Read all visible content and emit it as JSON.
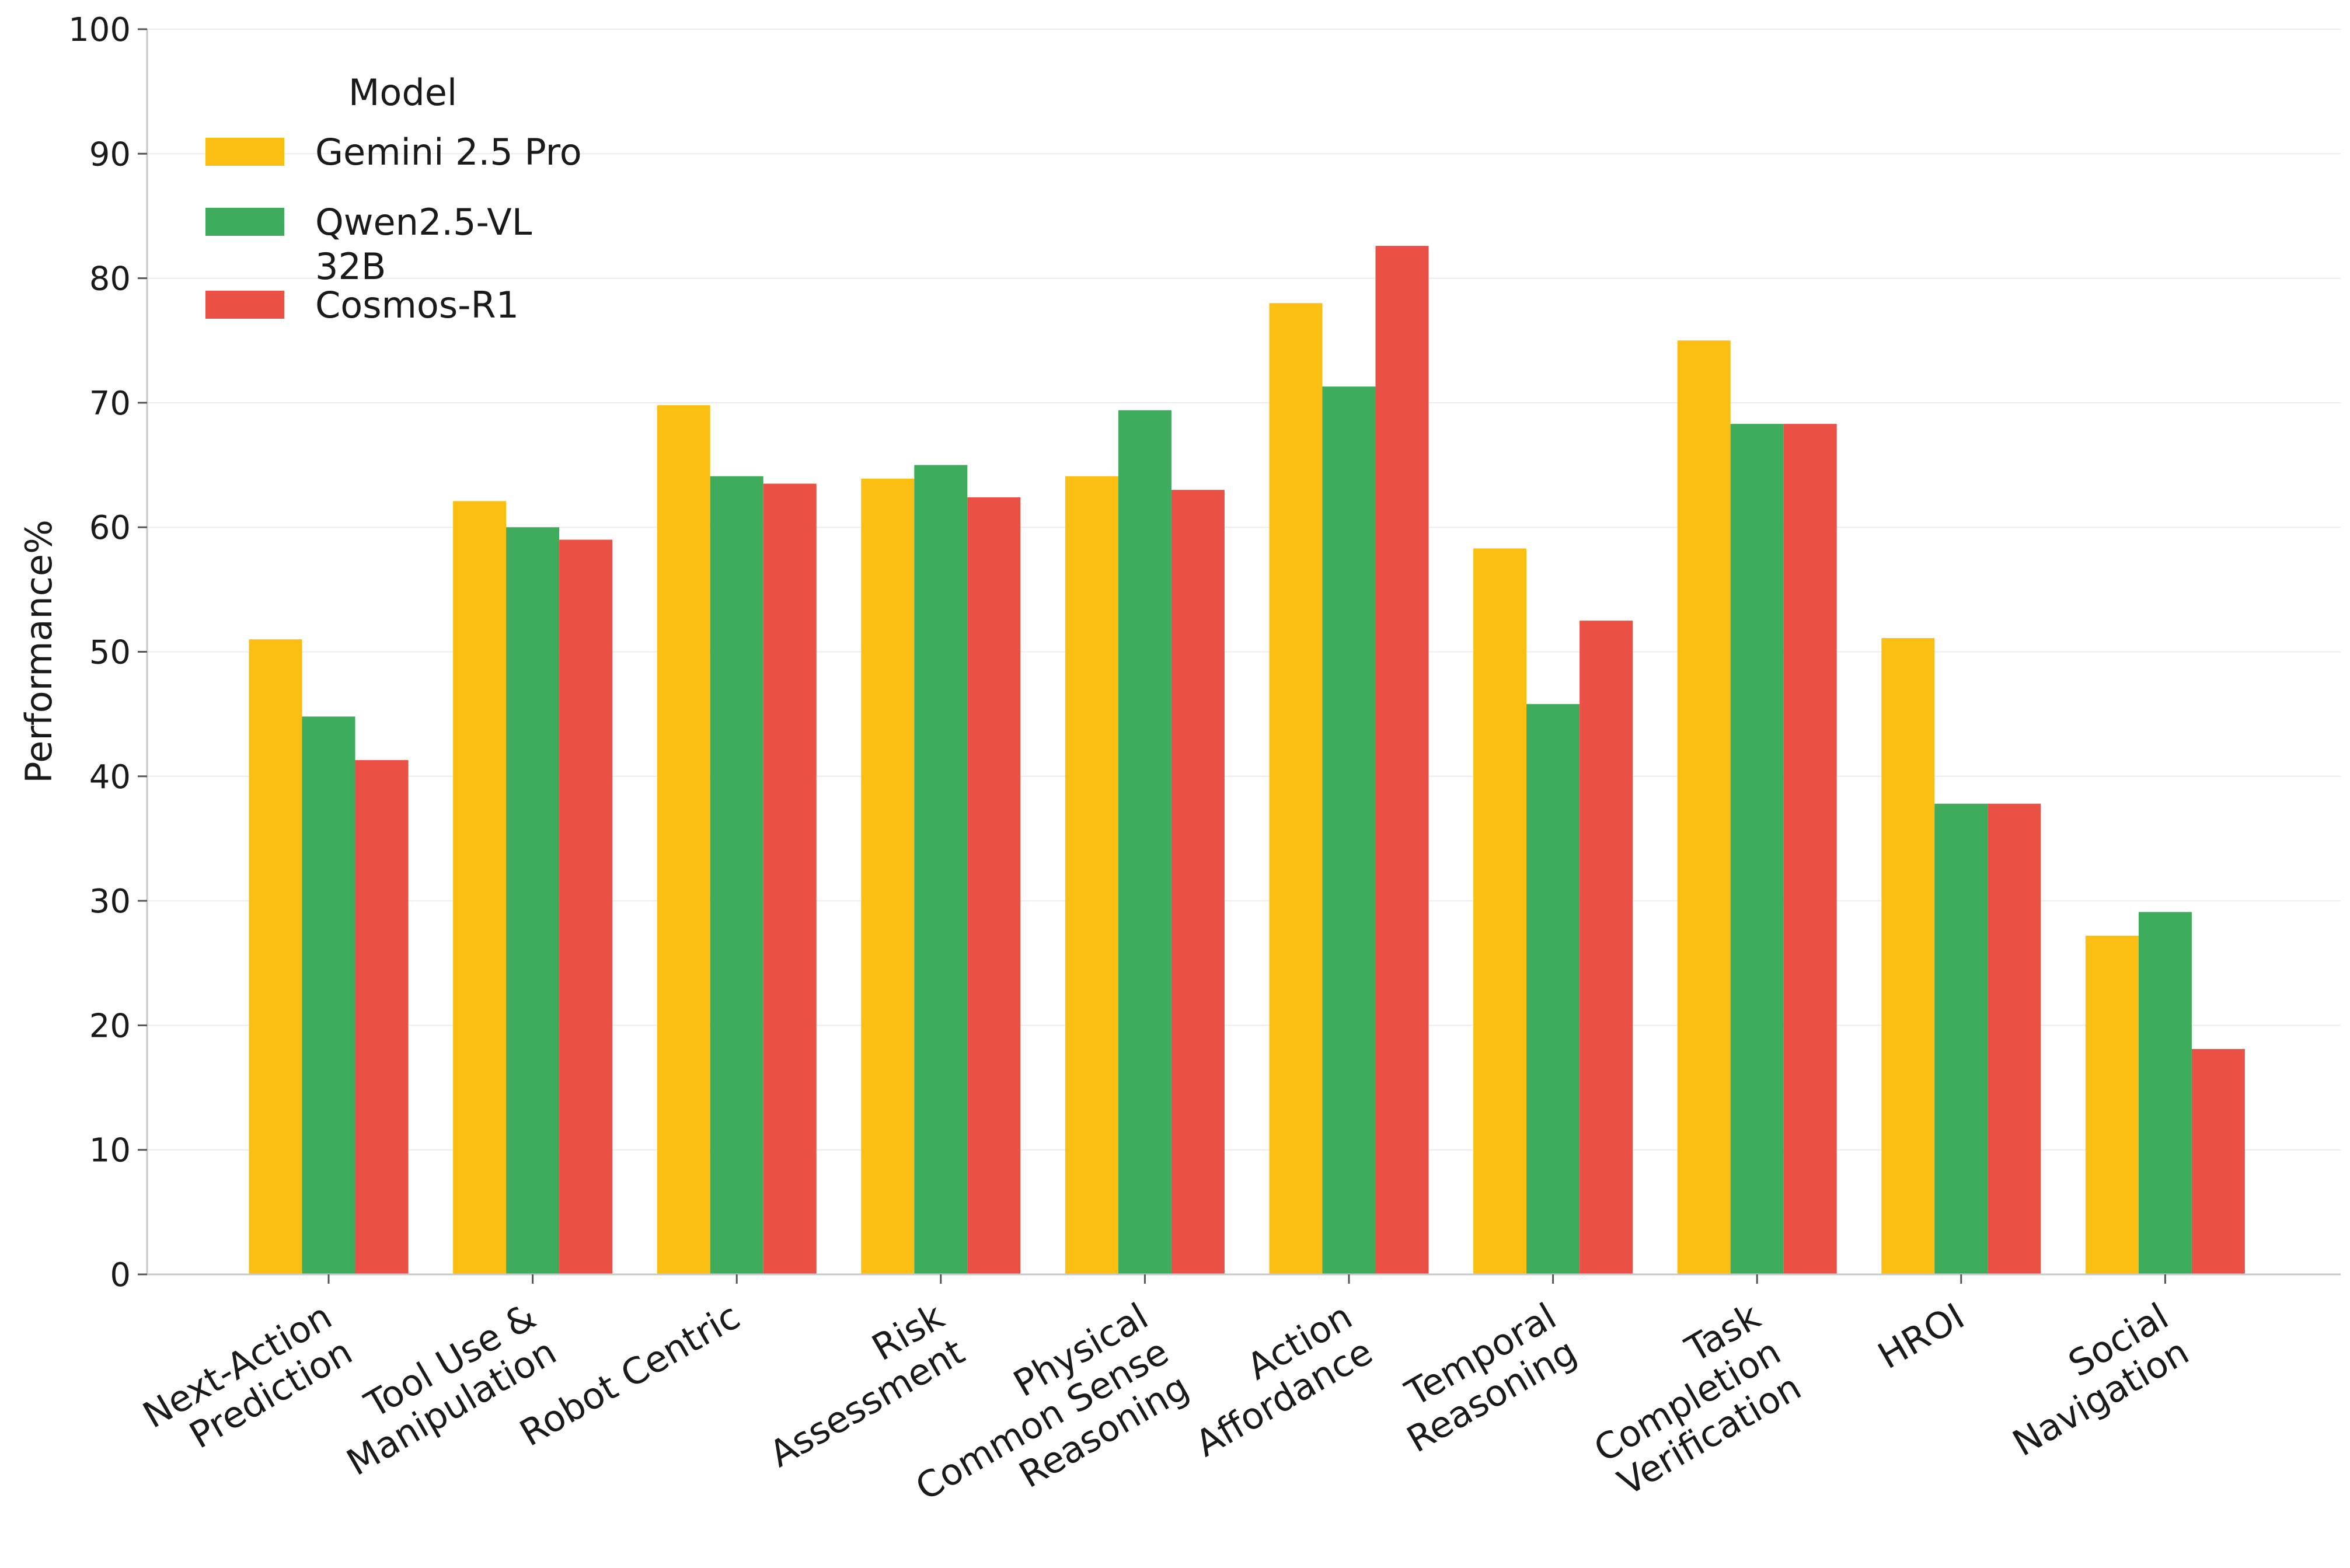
{
  "chart_data": {
    "type": "bar",
    "ylabel": "Performance%",
    "ylim": [
      0,
      100
    ],
    "yticks": [
      0,
      10,
      20,
      30,
      40,
      50,
      60,
      70,
      80,
      90,
      100
    ],
    "grid": "horizontal",
    "legend": {
      "title": "Model",
      "placement": "top-left"
    },
    "categories": [
      "Next-Action\nPrediction",
      "Tool Use &\nManipulation",
      "Robot Centric",
      "Risk\nAssessment",
      "Physical\nCommon Sense\nReasoning",
      "Action\nAffordance",
      "Temporal\nReasoning",
      "Task\nCompletion\nVerification",
      "HROI",
      "Social\nNavigation"
    ],
    "series": [
      {
        "name": "Gemini 2.5 Pro",
        "color": "#FBBF14",
        "values": [
          51.0,
          62.1,
          69.8,
          63.9,
          64.1,
          78.0,
          58.3,
          75.0,
          51.1,
          27.2
        ]
      },
      {
        "name": "Qwen2.5-VL\n32B",
        "color": "#3FAB5C",
        "values": [
          44.8,
          60.0,
          64.1,
          65.0,
          69.4,
          71.3,
          45.8,
          68.3,
          37.8,
          29.1
        ]
      },
      {
        "name": "Cosmos-R1",
        "color": "#EB5045",
        "values": [
          41.3,
          59.0,
          63.5,
          62.4,
          63.0,
          82.6,
          52.5,
          68.3,
          37.8,
          18.1
        ]
      }
    ]
  }
}
